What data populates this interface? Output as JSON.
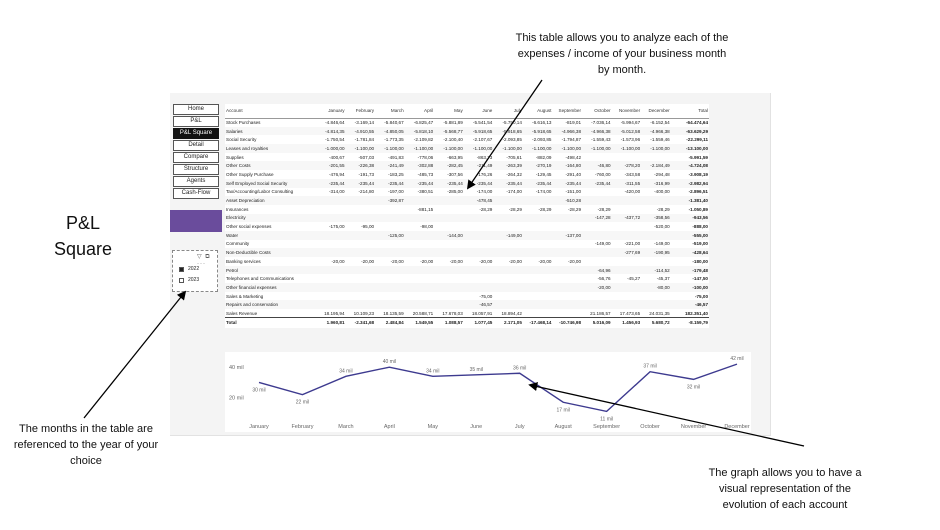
{
  "slide": {
    "title": "P&L Square",
    "annotation_top": "This table allows you to analyze each of the expenses / income of your business month by month.",
    "annotation_left": "The months in the table are referenced to the year of your choice",
    "annotation_right": "The graph allows you to have a visual representation of the evolution of each account"
  },
  "nav": {
    "items": [
      "Home",
      "P&L",
      "P&L Square",
      "Detail",
      "Compare",
      "Structure",
      "Agents",
      "Cash-Flow"
    ],
    "active": "P&L Square"
  },
  "slicer": {
    "icons": "▽ ⧉ ···",
    "options": [
      {
        "label": "2022",
        "checked": true
      },
      {
        "label": "2023",
        "checked": false
      }
    ]
  },
  "table": {
    "columns": [
      "Account",
      "January",
      "February",
      "March",
      "April",
      "May",
      "June",
      "July",
      "August",
      "September",
      "October",
      "November",
      "December",
      "Total"
    ],
    "rows": [
      [
        "Stock Purchases",
        "-4.846,64",
        "-3.169,14",
        "-5.840,67",
        "-6.825,47",
        "-5.881,89",
        "-5.541,54",
        "-5.750,14",
        "-6.616,13",
        "-819,01",
        "-7.036,14",
        "-5.994,67",
        "-6.152,54",
        "-64.474,64"
      ],
      [
        "Salaries",
        "-4.814,35",
        "-4.910,55",
        "-4.850,05",
        "-5.818,10",
        "-5.568,77",
        "-5.918,65",
        "-5.918,65",
        "-5.918,65",
        "-4.966,38",
        "-4.966,38",
        "-5.012,58",
        "-4.966,38",
        "-63.629,29"
      ],
      [
        "Social Security",
        "-1.750,54",
        "-1.781,84",
        "-1.773,35",
        "-2.109,82",
        "-2.100,40",
        "-2.107,67",
        "-2.093,85",
        "-2.093,85",
        "-1.794,87",
        "-1.559,43",
        "-1.573,96",
        "-1.559,46",
        "-22.299,11"
      ],
      [
        "Leases and royalties",
        "-1.000,00",
        "-1.100,00",
        "-1.100,00",
        "-1.100,00",
        "-1.100,00",
        "-1.100,00",
        "-1.100,00",
        "-1.100,00",
        "-1.100,00",
        "-1.100,00",
        "-1.100,00",
        "-1.100,00",
        "-13.100,00"
      ],
      [
        "Supplies",
        "-400,67",
        "-507,03",
        "-491,83",
        "-778,06",
        "-663,95",
        "-863,73",
        "-705,61",
        "-882,09",
        "-498,42",
        "",
        "",
        "",
        "-5.991,59"
      ],
      [
        "Other Costs",
        "-201,55",
        "-226,38",
        "-241,49",
        "-302,88",
        "-282,45",
        "-211,49",
        "-263,39",
        "-270,19",
        "-164,80",
        "-46,80",
        "-278,20",
        "-2.184,49",
        "-4.724,08"
      ],
      [
        "Other Supply Purchase",
        "-476,94",
        "-191,73",
        "-183,25",
        "-485,73",
        "-307,56",
        "-176,26",
        "-264,32",
        "-129,45",
        "-291,40",
        "-760,00",
        "-343,58",
        "-294,48",
        "-3.908,19"
      ],
      [
        "Self Employed Social Security",
        "-235,44",
        "-235,44",
        "-235,44",
        "-235,44",
        "-235,44",
        "-235,44",
        "-235,44",
        "-235,44",
        "-235,44",
        "-235,44",
        "-311,55",
        "-316,99",
        "-2.982,94"
      ],
      [
        "Tax/Accounting/Labor Consulting",
        "-314,00",
        "-214,80",
        "-197,00",
        "-380,51",
        "-285,00",
        "-174,00",
        "-174,00",
        "-174,00",
        "-151,00",
        "",
        "-420,00",
        "-400,00",
        "-2.896,51"
      ],
      [
        "Asset Depreciation",
        "",
        "",
        "-392,87",
        "",
        "",
        "-478,45",
        "",
        "",
        "-510,28",
        "",
        "",
        "",
        "-1.381,40"
      ],
      [
        "Insurances",
        "",
        "",
        "",
        "-881,15",
        "",
        "-28,29",
        "-28,29",
        "-28,29",
        "-28,29",
        "-28,29",
        "",
        "-28,29",
        "-1.050,89"
      ],
      [
        "Electricity",
        "",
        "",
        "",
        "",
        "",
        "",
        "",
        "",
        "",
        "-147,28",
        "-437,72",
        "-358,56",
        "-943,56"
      ],
      [
        "Other social expenses",
        "-175,00",
        "-95,00",
        "",
        "-98,00",
        "",
        "",
        "",
        "",
        "",
        "",
        "",
        "-520,00",
        "-888,00"
      ],
      [
        "Water",
        "",
        "",
        "-125,00",
        "",
        "-144,00",
        "",
        "-149,00",
        "",
        "-137,00",
        "",
        "",
        "",
        "-555,00"
      ],
      [
        "Community",
        "",
        "",
        "",
        "",
        "",
        "",
        "",
        "",
        "",
        "-149,00",
        "-221,00",
        "-149,00",
        "-519,00"
      ],
      [
        "Non-Deductible Costs",
        "",
        "",
        "",
        "",
        "",
        "",
        "",
        "",
        "",
        "",
        "-277,69",
        "-190,95",
        "-428,64"
      ],
      [
        "Banking services",
        "-20,00",
        "-20,00",
        "-20,00",
        "-20,00",
        "-20,00",
        "-20,00",
        "-20,00",
        "-20,00",
        "-20,00",
        "",
        "",
        "",
        "-180,00"
      ],
      [
        "Petrol",
        "",
        "",
        "",
        "",
        "",
        "",
        "",
        "",
        "",
        "-64,96",
        "",
        "-114,52",
        "-179,48"
      ],
      [
        "Telephones and Communications",
        "",
        "",
        "",
        "",
        "",
        "",
        "",
        "",
        "",
        "-56,76",
        "-45,27",
        "-45,37",
        "-147,50"
      ],
      [
        "Other financial expenses",
        "",
        "",
        "",
        "",
        "",
        "",
        "",
        "",
        "",
        "-20,00",
        "",
        "-80,00",
        "-100,00"
      ],
      [
        "Sales & Marketing",
        "",
        "",
        "",
        "",
        "",
        "-75,00",
        "",
        "",
        "",
        "",
        "",
        "",
        "-75,00"
      ],
      [
        "Repairs and conservation",
        "",
        "",
        "",
        "",
        "",
        "-46,57",
        "",
        "",
        "",
        "",
        "",
        "",
        "-46,57"
      ],
      [
        "Sales Revenue",
        "18.195,94",
        "10.109,23",
        "18.135,59",
        "20.588,71",
        "17.678,03",
        "18.057,91",
        "18.894,42",
        "",
        "",
        "21.186,57",
        "17.473,65",
        "24.031,35",
        "182.351,40"
      ],
      [
        "Total",
        "1.960,81",
        "-2.341,68",
        "2.484,84",
        "1.549,55",
        "1.088,57",
        "1.077,45",
        "2.171,05",
        "-17.468,14",
        "-10.746,98",
        "5.016,09",
        "1.456,93",
        "5.680,72",
        "-8.159,79"
      ]
    ]
  },
  "chart_data": {
    "type": "line",
    "categories": [
      "January",
      "February",
      "March",
      "April",
      "May",
      "June",
      "July",
      "August",
      "September",
      "October",
      "November",
      "December"
    ],
    "series": [
      {
        "values": [
          30,
          22,
          34,
          40,
          34,
          35,
          36,
          17,
          11,
          37,
          32,
          42
        ]
      }
    ],
    "data_labels": [
      "30 mil",
      "22 mil",
      "34 mil",
      "40 mil",
      "34 mil",
      "35 mil",
      "36 mil",
      "17 mil",
      "11 mil",
      "37 mil",
      "32 mil",
      "42 mil"
    ],
    "y_tick_labels": [
      "40 mil",
      "20 mil"
    ],
    "y_ticks": [
      40,
      20
    ],
    "ylim": [
      8,
      46
    ],
    "line_color": "#3d3a8f"
  },
  "colors": {
    "accent": "#6a4c9c",
    "line": "#3d3a8f",
    "nav_active": "#111111"
  }
}
